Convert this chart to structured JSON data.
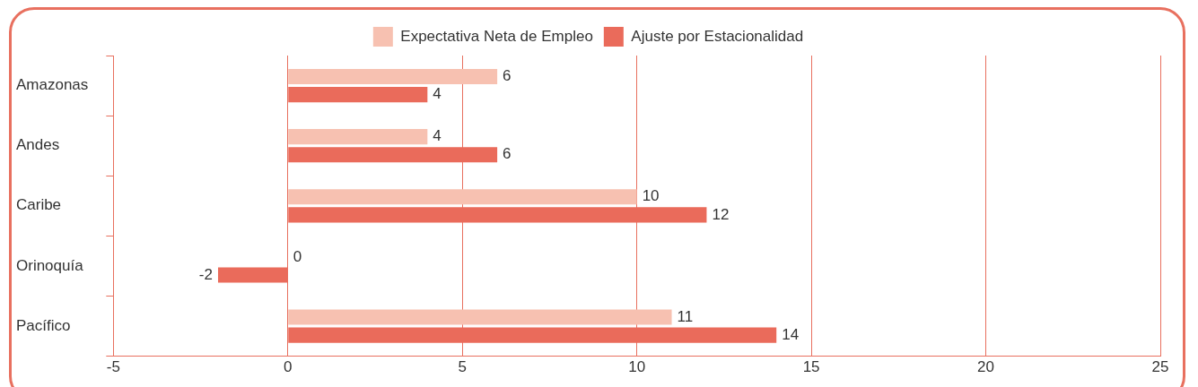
{
  "chart_data": {
    "type": "bar",
    "orientation": "horizontal",
    "categories": [
      "Amazonas",
      "Andes",
      "Caribe",
      "Orinoquía",
      "Pacífico"
    ],
    "series": [
      {
        "name": "Expectativa Neta de Empleo",
        "color": "#f7c1b1",
        "values": [
          6,
          4,
          10,
          0,
          11
        ]
      },
      {
        "name": "Ajuste por Estacionalidad",
        "color": "#ea6b5b",
        "values": [
          4,
          6,
          12,
          -2,
          14
        ]
      }
    ],
    "xlim": [
      -5,
      25
    ],
    "xticks": [
      -5,
      0,
      5,
      10,
      15,
      20,
      25
    ],
    "grid": "x",
    "legend": "top",
    "data_labels": true
  }
}
